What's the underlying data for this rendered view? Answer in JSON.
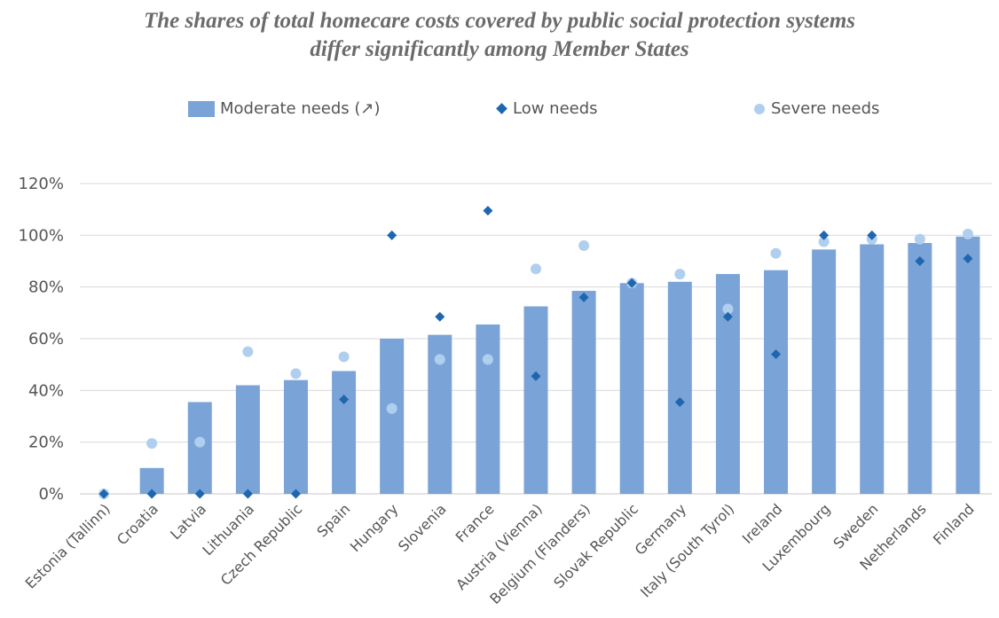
{
  "title": {
    "line1": "The shares of total homecare costs covered by public social protection systems",
    "line2": "differ significantly among Member States"
  },
  "legend": [
    {
      "label": "Moderate needs (↗)",
      "marker": "bar",
      "color": "#7aa3d8"
    },
    {
      "label": "Low needs",
      "marker": "diamond",
      "color": "#1f66b0"
    },
    {
      "label": "Severe needs",
      "marker": "circle",
      "color": "#b0cfee"
    }
  ],
  "chart_data": {
    "type": "bar",
    "title": "The shares of total homecare costs covered by public social protection systems differ significantly among Member States",
    "xlabel": "",
    "ylabel": "",
    "ylim": [
      0,
      120
    ],
    "yticks": [
      "0%",
      "20%",
      "40%",
      "60%",
      "80%",
      "100%",
      "120%"
    ],
    "grid": true,
    "legend_position": "top",
    "categories": [
      "Estonia (Tallinn)",
      "Croatia",
      "Latvia",
      "Lithuania",
      "Czech Republic",
      "Spain",
      "Hungary",
      "Slovenia",
      "France",
      "Austria (Vienna)",
      "Belgium (Flanders)",
      "Slovak Republic",
      "Germany",
      "Italy (South Tyrol)",
      "Ireland",
      "Luxembourg",
      "Sweden",
      "Netherlands",
      "Finland"
    ],
    "series": [
      {
        "name": "Moderate needs (↗)",
        "type": "bar",
        "color": "#7aa3d8",
        "values": [
          0,
          10,
          35.5,
          42,
          44,
          47.5,
          60,
          61.5,
          65.5,
          72.5,
          78.5,
          81.5,
          82,
          85,
          86.5,
          94.5,
          96.5,
          97,
          99.5
        ]
      },
      {
        "name": "Low needs",
        "type": "diamond",
        "color": "#1f66b0",
        "values": [
          0,
          0,
          0,
          0,
          0,
          36.5,
          100,
          68.5,
          109.5,
          45.5,
          76,
          81.5,
          35.5,
          68.5,
          54,
          100,
          100,
          90,
          91
        ]
      },
      {
        "name": "Severe needs",
        "type": "circle",
        "color": "#b0cfee",
        "values": [
          0,
          19.5,
          20,
          55,
          46.5,
          53,
          33,
          52,
          52,
          87,
          96,
          81.5,
          85,
          71.5,
          93,
          97.5,
          98.5,
          98.5,
          100.5
        ]
      }
    ]
  }
}
